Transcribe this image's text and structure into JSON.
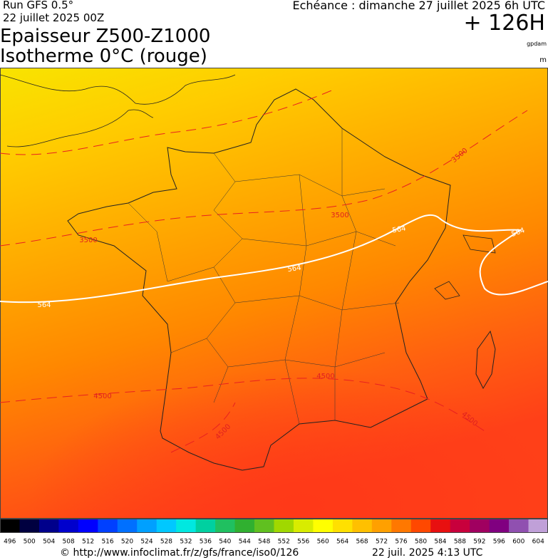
{
  "header": {
    "run": "Run GFS 0.5°",
    "run_date": "22 juillet 2025 00Z",
    "title_line1": "Epaisseur Z500-Z1000",
    "title_line2": "Isotherme 0°C (rouge)",
    "valid": "Echéance : dimanche 27 juillet 2025 6h UTC",
    "lead": "+ 126H",
    "unit1": "gpdam",
    "unit2": "m"
  },
  "map": {
    "contour_labels": [
      {
        "text": "564"
      },
      {
        "text": "564"
      },
      {
        "text": "564"
      },
      {
        "text": "564"
      },
      {
        "text": "3500"
      },
      {
        "text": "3500"
      },
      {
        "text": "3500"
      },
      {
        "text": "4500"
      },
      {
        "text": "4500"
      },
      {
        "text": "4500"
      },
      {
        "text": "4500"
      }
    ]
  },
  "colorbar": {
    "labels": [
      496,
      500,
      504,
      508,
      512,
      516,
      520,
      524,
      528,
      532,
      536,
      540,
      544,
      548,
      552,
      556,
      560,
      564,
      568,
      572,
      576,
      580,
      584,
      588,
      592,
      596,
      600,
      604
    ],
    "colors": [
      "#000000",
      "#000040",
      "#00008b",
      "#0000cd",
      "#0000ff",
      "#0040ff",
      "#0070ff",
      "#00a0ff",
      "#00c8ff",
      "#00e8e0",
      "#00d0a0",
      "#20c060",
      "#30b030",
      "#60c020",
      "#a0d800",
      "#d8ec00",
      "#ffff00",
      "#ffe000",
      "#ffc000",
      "#ffa000",
      "#ff7800",
      "#ff4800",
      "#e81010",
      "#c8003c",
      "#a00060",
      "#800080",
      "#9050b0",
      "#c0a0d8"
    ]
  },
  "footer": {
    "source": "© http://www.infoclimat.fr/z/gfs/france/iso0/126",
    "generated": "22 juil. 2025  4:13 UTC"
  }
}
